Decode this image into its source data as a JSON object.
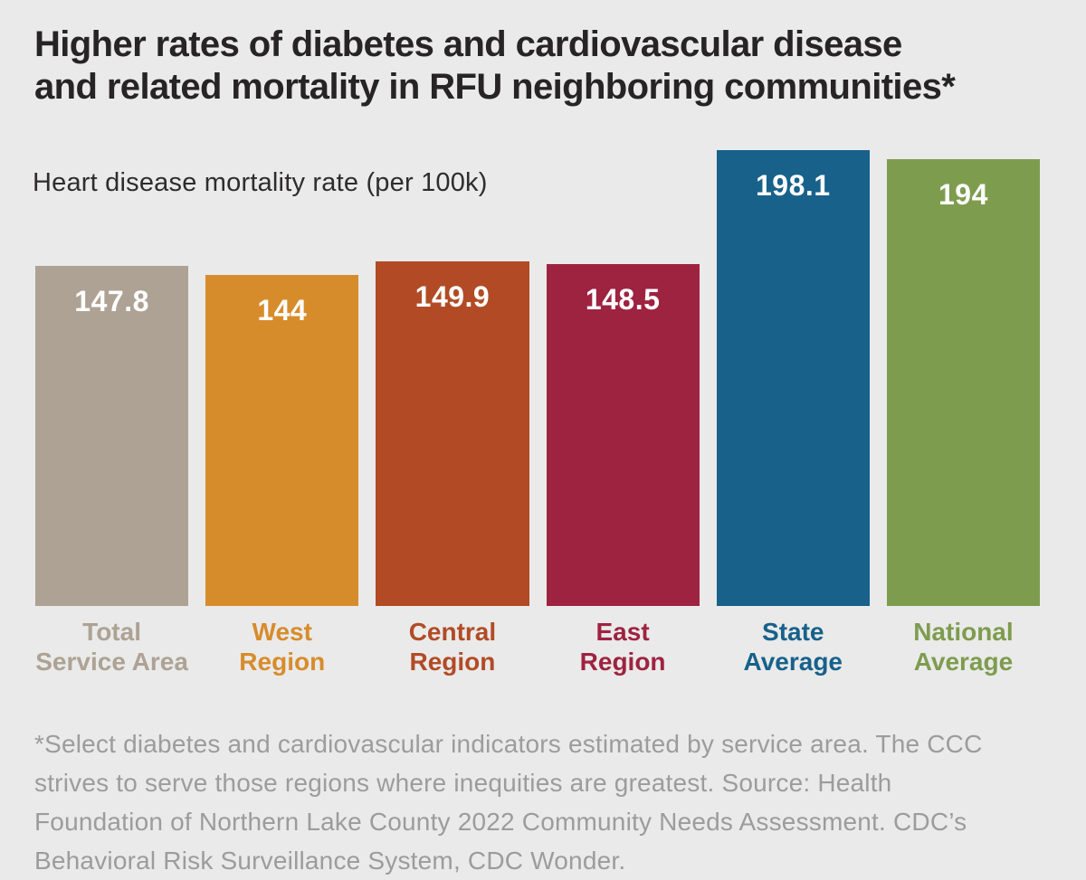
{
  "page": {
    "background": "#eaeaea"
  },
  "title": {
    "line1": "Higher rates of diabetes and cardiovascular disease",
    "line2": "and related mortality in RFU neighboring communities*",
    "color": "#272425"
  },
  "chart_data": {
    "type": "bar",
    "title": "Higher rates of diabetes and cardiovascular disease and related mortality in RFU neighboring communities*",
    "ylabel": "Heart disease mortality rate (per 100k)",
    "xlabel": "",
    "categories": [
      "Total Service Area",
      "West Region",
      "Central Region",
      "East Region",
      "State Average",
      "National Average"
    ],
    "category_lines": [
      [
        "Total",
        "Service Area"
      ],
      [
        "West",
        "Region"
      ],
      [
        "Central",
        "Region"
      ],
      [
        "East",
        "Region"
      ],
      [
        "State",
        "Average"
      ],
      [
        "National",
        "Average"
      ]
    ],
    "values": [
      147.8,
      144,
      149.9,
      148.5,
      198.1,
      194
    ],
    "value_labels": [
      "147.8",
      "144",
      "149.9",
      "148.5",
      "198.1",
      "194"
    ],
    "colors": [
      "#ada294",
      "#d78c2b",
      "#b24b25",
      "#9e2340",
      "#17618b",
      "#7e9c4e"
    ],
    "value_label_color": "#ffffff",
    "ylim": [
      0,
      198.1
    ],
    "grid": false,
    "legend": "none",
    "layout_hint": "value labels inside top of bars; category labels below bars colored to match each bar"
  },
  "footnote": {
    "text": "*Select diabetes and cardiovascular indicators estimated by service area. The CCC strives to serve those regions where inequities are greatest. Source: Health Foundation of Northern Lake County 2022 Community Needs Assessment. CDC’s Behavioral Risk Surveillance System, CDC Wonder.",
    "color": "#9c9c9c"
  }
}
